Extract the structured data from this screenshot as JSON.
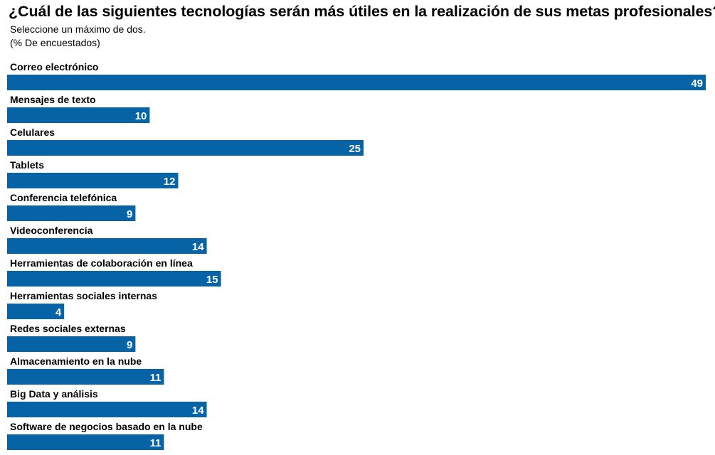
{
  "chart_data": {
    "type": "bar",
    "orientation": "horizontal",
    "title": "¿Cuál de las siguientes tecnologías serán más útiles en la realización de sus metas profesionales?",
    "subtitle_lines": [
      "Seleccione un máximo de dos.",
      "(% De encuestados)"
    ],
    "categories": [
      "Correo electrónico",
      "Mensajes de texto",
      "Celulares",
      "Tablets",
      "Conferencia telefónica",
      "Videoconferencia",
      "Herramientas de colaboración en línea",
      "Herramientas sociales internas",
      "Redes sociales externas",
      "Almacenamiento en la nube",
      "Big Data y análisis",
      "Software de negocios basado en la nube"
    ],
    "values": [
      49,
      10,
      25,
      12,
      9,
      14,
      15,
      4,
      9,
      11,
      14,
      11
    ],
    "xlim": [
      0,
      49
    ],
    "bar_color": "#0563A6",
    "label_color": "#ffffff",
    "grid": false,
    "legend": "none"
  }
}
